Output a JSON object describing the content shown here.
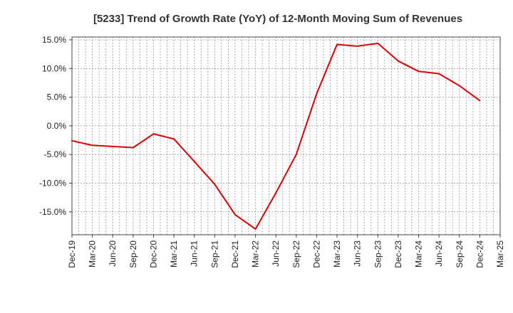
{
  "chart_data": {
    "type": "line",
    "title": "[5233]  Trend of Growth Rate (YoY) of 12-Month Moving Sum of Revenues",
    "xlabel": "",
    "ylabel": "",
    "y_tick_labels": [
      "15.0%",
      "10.0%",
      "5.0%",
      "0.0%",
      "-5.0%",
      "-10.0%",
      "-15.0%"
    ],
    "y_tick_values": [
      15,
      10,
      5,
      0,
      -5,
      -10,
      -15
    ],
    "ylim": [
      -19,
      15.5
    ],
    "x_tick_labels": [
      "Dec-19",
      "Mar-20",
      "Jun-20",
      "Sep-20",
      "Dec-20",
      "Mar-21",
      "Jun-21",
      "Sep-21",
      "Dec-21",
      "Mar-22",
      "Jun-22",
      "Sep-22",
      "Dec-22",
      "Mar-23",
      "Jun-23",
      "Sep-23",
      "Dec-23",
      "Mar-24",
      "Jun-24",
      "Sep-24",
      "Dec-24",
      "Mar-25"
    ],
    "grid": true,
    "line_color": "#e00000",
    "series": [
      {
        "values": [
          -2.6,
          -3.4,
          -3.6,
          -3.8,
          -1.4,
          -2.3,
          -6.2,
          -10.2,
          -15.5,
          -18.0,
          -11.7,
          -5.0,
          5.6,
          14.2,
          13.9,
          14.4,
          11.3,
          9.5,
          9.1,
          7.0,
          4.4
        ]
      }
    ]
  }
}
